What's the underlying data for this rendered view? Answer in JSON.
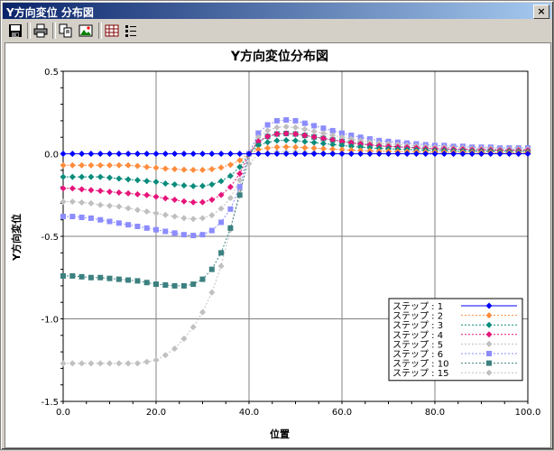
{
  "window": {
    "title": "Y方向変位 分布図",
    "close_glyph": "×"
  },
  "toolbar": {
    "icons": [
      "save-icon",
      "print-icon",
      "copy-icon",
      "export-image-icon",
      "grid-icon",
      "list-icon"
    ]
  },
  "chart_data": {
    "type": "line",
    "title": "Y方向変位分布図",
    "xlabel": "位置",
    "ylabel": "Y方向変位",
    "xlim": [
      0,
      100
    ],
    "ylim": [
      -1.5,
      0.5
    ],
    "xticks": [
      "0.0",
      "20.0",
      "40.0",
      "60.0",
      "80.0",
      "100.0"
    ],
    "yticks": [
      "0.5",
      "0.0",
      "-0.5",
      "-1.0",
      "-1.5"
    ],
    "grid": true,
    "legend_position": "bottom-right",
    "x": [
      0,
      2,
      4,
      6,
      8,
      10,
      12,
      14,
      16,
      18,
      20,
      22,
      24,
      26,
      28,
      30,
      32,
      34,
      36,
      38,
      40,
      42,
      44,
      46,
      48,
      50,
      52,
      54,
      56,
      58,
      60,
      62,
      64,
      66,
      68,
      70,
      72,
      74,
      76,
      78,
      80,
      82,
      84,
      86,
      88,
      90,
      92,
      94,
      96,
      98,
      100
    ],
    "series": [
      {
        "name": "ステップ : 1",
        "color": "#0000ff",
        "marker": "diamond",
        "values": [
          0,
          0,
          0,
          0,
          0,
          0,
          0,
          0,
          0,
          0,
          0,
          0,
          0,
          0,
          0,
          0,
          0,
          0,
          0,
          0,
          0,
          0,
          0,
          0,
          0,
          0,
          0,
          0,
          0,
          0,
          0,
          0,
          0,
          0,
          0,
          0,
          0,
          0,
          0,
          0,
          0,
          0,
          0,
          0,
          0,
          0,
          0,
          0,
          0,
          0,
          0
        ]
      },
      {
        "name": "ステップ : 2",
        "color": "#ff8c3c",
        "marker": "diamond",
        "values": [
          -0.07,
          -0.07,
          -0.07,
          -0.07,
          -0.07,
          -0.07,
          -0.07,
          -0.07,
          -0.074,
          -0.08,
          -0.085,
          -0.09,
          -0.093,
          -0.096,
          -0.098,
          -0.098,
          -0.093,
          -0.083,
          -0.067,
          -0.04,
          0,
          0.025,
          0.035,
          0.04,
          0.042,
          0.04,
          0.037,
          0.034,
          0.031,
          0.028,
          0.025,
          0.022,
          0.02,
          0.018,
          0.016,
          0.015,
          0.014,
          0.013,
          0.012,
          0.011,
          0.01,
          0.01,
          0.009,
          0.009,
          0.008,
          0.008,
          0.008,
          0.007,
          0.007,
          0.007,
          0.007
        ]
      },
      {
        "name": "ステップ : 3",
        "color": "#0a8c7c",
        "marker": "diamond",
        "values": [
          -0.14,
          -0.14,
          -0.14,
          -0.14,
          -0.14,
          -0.145,
          -0.15,
          -0.155,
          -0.16,
          -0.165,
          -0.17,
          -0.18,
          -0.186,
          -0.192,
          -0.196,
          -0.195,
          -0.186,
          -0.166,
          -0.134,
          -0.08,
          0,
          0.05,
          0.07,
          0.08,
          0.082,
          0.08,
          0.074,
          0.068,
          0.062,
          0.056,
          0.05,
          0.045,
          0.04,
          0.036,
          0.032,
          0.03,
          0.028,
          0.026,
          0.024,
          0.022,
          0.02,
          0.02,
          0.018,
          0.018,
          0.016,
          0.016,
          0.016,
          0.014,
          0.014,
          0.014,
          0.014
        ]
      },
      {
        "name": "ステップ : 4",
        "color": "#e6147a",
        "marker": "diamond",
        "values": [
          -0.21,
          -0.21,
          -0.215,
          -0.22,
          -0.225,
          -0.23,
          -0.235,
          -0.24,
          -0.245,
          -0.25,
          -0.26,
          -0.27,
          -0.279,
          -0.288,
          -0.294,
          -0.293,
          -0.279,
          -0.249,
          -0.201,
          -0.12,
          0,
          0.075,
          0.105,
          0.12,
          0.123,
          0.12,
          0.111,
          0.102,
          0.093,
          0.084,
          0.075,
          0.067,
          0.06,
          0.054,
          0.048,
          0.045,
          0.042,
          0.039,
          0.036,
          0.033,
          0.03,
          0.03,
          0.027,
          0.027,
          0.024,
          0.024,
          0.024,
          0.021,
          0.021,
          0.021,
          0.021
        ]
      },
      {
        "name": "ステップ : 5",
        "color": "#bfbfbf",
        "marker": "diamond",
        "values": [
          -0.29,
          -0.29,
          -0.295,
          -0.3,
          -0.31,
          -0.315,
          -0.32,
          -0.33,
          -0.34,
          -0.35,
          -0.36,
          -0.37,
          -0.38,
          -0.39,
          -0.395,
          -0.39,
          -0.372,
          -0.332,
          -0.268,
          -0.16,
          0,
          0.1,
          0.14,
          0.16,
          0.164,
          0.16,
          0.148,
          0.136,
          0.124,
          0.112,
          0.1,
          0.09,
          0.08,
          0.072,
          0.064,
          0.06,
          0.056,
          0.052,
          0.048,
          0.044,
          0.04,
          0.04,
          0.036,
          0.036,
          0.032,
          0.032,
          0.032,
          0.028,
          0.028,
          0.028,
          0.028
        ]
      },
      {
        "name": "ステップ : 6",
        "color": "#8c8cff",
        "marker": "square",
        "values": [
          -0.38,
          -0.38,
          -0.385,
          -0.39,
          -0.4,
          -0.41,
          -0.42,
          -0.43,
          -0.44,
          -0.45,
          -0.46,
          -0.47,
          -0.48,
          -0.49,
          -0.495,
          -0.49,
          -0.465,
          -0.415,
          -0.335,
          -0.2,
          0,
          0.125,
          0.175,
          0.2,
          0.205,
          0.2,
          0.185,
          0.17,
          0.155,
          0.14,
          0.125,
          0.112,
          0.1,
          0.09,
          0.08,
          0.075,
          0.07,
          0.065,
          0.06,
          0.055,
          0.05,
          0.05,
          0.045,
          0.045,
          0.04,
          0.04,
          0.04,
          0.035,
          0.035,
          0.035,
          0.035
        ]
      },
      {
        "name": "ステップ : 10",
        "color": "#3c8080",
        "marker": "square",
        "values": [
          -0.74,
          -0.74,
          -0.745,
          -0.75,
          -0.75,
          -0.755,
          -0.76,
          -0.765,
          -0.77,
          -0.78,
          -0.79,
          -0.795,
          -0.8,
          -0.8,
          -0.79,
          -0.76,
          -0.7,
          -0.6,
          -0.45,
          -0.25,
          0,
          0.07,
          0.105,
          0.12,
          0.123,
          0.12,
          0.111,
          0.102,
          0.093,
          0.084,
          0.075,
          0.067,
          0.06,
          0.054,
          0.048,
          0.045,
          0.042,
          0.039,
          0.036,
          0.033,
          0.03,
          0.03,
          0.027,
          0.027,
          0.024,
          0.024,
          0.024,
          0.021,
          0.021,
          0.021,
          0.021
        ]
      },
      {
        "name": "ステップ : 15",
        "color": "#c0c0c0",
        "marker": "diamond",
        "values": [
          -1.27,
          -1.27,
          -1.27,
          -1.27,
          -1.27,
          -1.27,
          -1.27,
          -1.27,
          -1.27,
          -1.26,
          -1.25,
          -1.22,
          -1.18,
          -1.12,
          -1.05,
          -0.96,
          -0.84,
          -0.68,
          -0.46,
          -0.22,
          -0.06,
          0,
          0.005,
          0.01,
          0.01,
          0.01,
          0.008,
          0.006,
          0.005,
          0.004,
          0.004,
          0.003,
          0.003,
          0.003,
          0.002,
          0.002,
          0.002,
          0.002,
          0.002,
          0.002,
          0.002,
          0.002,
          0.002,
          0.002,
          0.002,
          0.002,
          0.002,
          0.002,
          0.002,
          0.002,
          0.002
        ]
      }
    ]
  }
}
